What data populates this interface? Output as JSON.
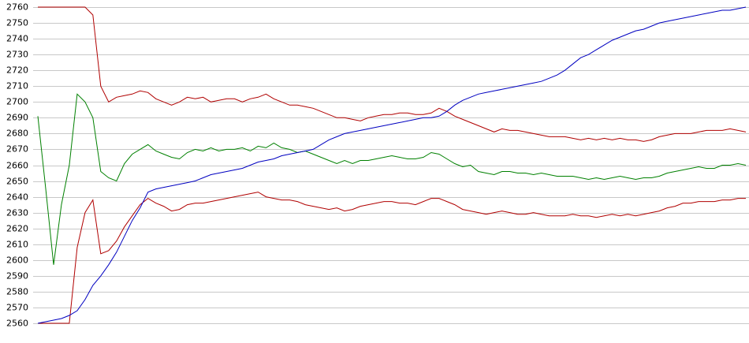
{
  "chart_data": {
    "type": "line",
    "ylim": [
      2560,
      2760
    ],
    "yticks": [
      2560,
      2570,
      2580,
      2590,
      2600,
      2610,
      2620,
      2630,
      2640,
      2650,
      2660,
      2670,
      2680,
      2690,
      2700,
      2710,
      2720,
      2730,
      2740,
      2750,
      2760
    ],
    "grid": true,
    "series": [
      {
        "color": "#b00000",
        "values": [
          2760,
          2760,
          2760,
          2760,
          2760,
          2760,
          2760,
          2755,
          2710,
          2700,
          2703,
          2704,
          2705,
          2707,
          2706,
          2702,
          2700,
          2698,
          2700,
          2703,
          2702,
          2703,
          2700,
          2701,
          2702,
          2702,
          2700,
          2702,
          2703,
          2705,
          2702,
          2700,
          2698,
          2698,
          2697,
          2696,
          2694,
          2692,
          2690,
          2690,
          2689,
          2688,
          2690,
          2691,
          2692,
          2692,
          2693,
          2693,
          2692,
          2692,
          2693,
          2696,
          2694,
          2691,
          2689,
          2687,
          2685,
          2683,
          2681,
          2683,
          2682,
          2682,
          2681,
          2680,
          2679,
          2678,
          2678,
          2678,
          2677,
          2676,
          2677,
          2676,
          2677,
          2676,
          2677,
          2676,
          2676,
          2675,
          2676,
          2678,
          2679,
          2680,
          2680,
          2680,
          2681,
          2682,
          2682,
          2682,
          2683,
          2682,
          2681
        ]
      },
      {
        "color": "#008000",
        "values": [
          2691,
          2645,
          2597,
          2635,
          2660,
          2705,
          2700,
          2690,
          2656,
          2652,
          2650,
          2661,
          2667,
          2670,
          2673,
          2669,
          2667,
          2665,
          2664,
          2668,
          2670,
          2669,
          2671,
          2669,
          2670,
          2670,
          2671,
          2669,
          2672,
          2671,
          2674,
          2671,
          2670,
          2668,
          2669,
          2667,
          2665,
          2663,
          2661,
          2663,
          2661,
          2663,
          2663,
          2664,
          2665,
          2666,
          2665,
          2664,
          2664,
          2665,
          2668,
          2667,
          2664,
          2661,
          2659,
          2660,
          2656,
          2655,
          2654,
          2656,
          2656,
          2655,
          2655,
          2654,
          2655,
          2654,
          2653,
          2653,
          2653,
          2652,
          2651,
          2652,
          2651,
          2652,
          2653,
          2652,
          2651,
          2652,
          2652,
          2653,
          2655,
          2656,
          2657,
          2658,
          2659,
          2658,
          2658,
          2660,
          2660,
          2661,
          2660
        ]
      },
      {
        "color": "#b00000",
        "values": [
          2560,
          2560,
          2560,
          2560,
          2560,
          2608,
          2630,
          2638,
          2604,
          2606,
          2612,
          2621,
          2628,
          2635,
          2639,
          2636,
          2634,
          2631,
          2632,
          2635,
          2636,
          2636,
          2637,
          2638,
          2639,
          2640,
          2641,
          2642,
          2643,
          2640,
          2639,
          2638,
          2638,
          2637,
          2635,
          2634,
          2633,
          2632,
          2633,
          2631,
          2632,
          2634,
          2635,
          2636,
          2637,
          2637,
          2636,
          2636,
          2635,
          2637,
          2639,
          2639,
          2637,
          2635,
          2632,
          2631,
          2630,
          2629,
          2630,
          2631,
          2630,
          2629,
          2629,
          2630,
          2629,
          2628,
          2628,
          2628,
          2629,
          2628,
          2628,
          2627,
          2628,
          2629,
          2628,
          2629,
          2628,
          2629,
          2630,
          2631,
          2633,
          2634,
          2636,
          2636,
          2637,
          2637,
          2637,
          2638,
          2638,
          2639,
          2639
        ]
      },
      {
        "color": "#0000c0",
        "values": [
          2560,
          2561,
          2562,
          2563,
          2565,
          2568,
          2575,
          2584,
          2590,
          2597,
          2605,
          2615,
          2625,
          2633,
          2643,
          2645,
          2646,
          2647,
          2648,
          2649,
          2650,
          2652,
          2654,
          2655,
          2656,
          2657,
          2658,
          2660,
          2662,
          2663,
          2664,
          2666,
          2667,
          2668,
          2669,
          2670,
          2673,
          2676,
          2678,
          2680,
          2681,
          2682,
          2683,
          2684,
          2685,
          2686,
          2687,
          2688,
          2689,
          2690,
          2690,
          2691,
          2694,
          2698,
          2701,
          2703,
          2705,
          2706,
          2707,
          2708,
          2709,
          2710,
          2711,
          2712,
          2713,
          2715,
          2717,
          2720,
          2724,
          2728,
          2730,
          2733,
          2736,
          2739,
          2741,
          2743,
          2745,
          2746,
          2748,
          2750,
          2751,
          2752,
          2753,
          2754,
          2755,
          2756,
          2757,
          2758,
          2758,
          2759,
          2760
        ]
      }
    ]
  }
}
